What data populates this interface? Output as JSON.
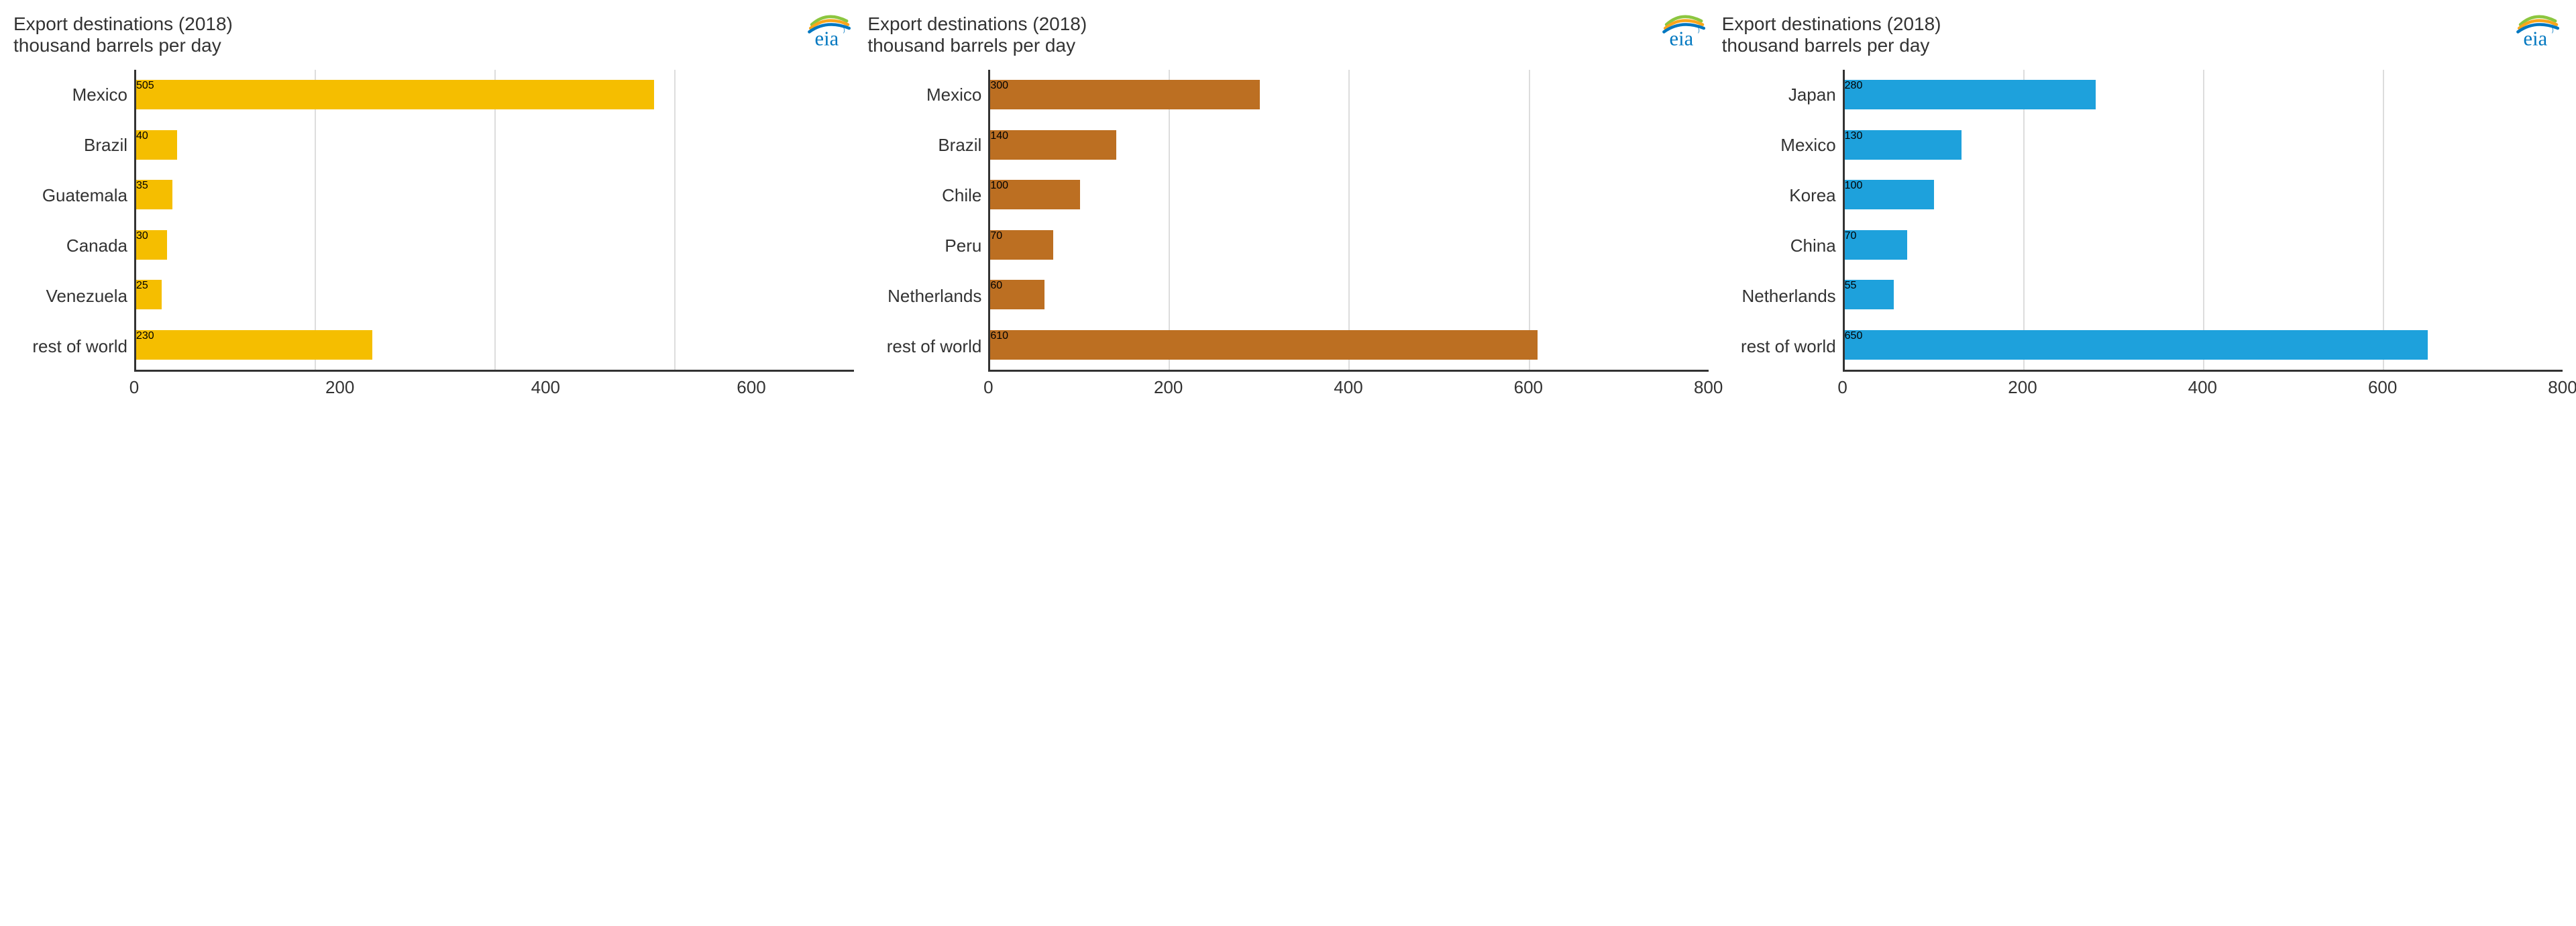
{
  "charts": [
    {
      "title_line1": "Export destinations (2018)",
      "title_line2": "thousand barrels per day",
      "color": "#f5be00",
      "xlim": 700,
      "xtick_step": 200,
      "xtick_max": 600,
      "grid_color": "#dddddd",
      "axis_color": "#333333",
      "title_fontsize": 28,
      "label_fontsize": 26,
      "tick_fontsize": 26,
      "categories": [
        "Mexico",
        "Brazil",
        "Guatemala",
        "Canada",
        "Venezuela",
        "rest of world"
      ],
      "values": [
        505,
        40,
        35,
        30,
        25,
        230
      ]
    },
    {
      "title_line1": "Export destinations (2018)",
      "title_line2": "thousand barrels per day",
      "color": "#bc6f22",
      "xlim": 800,
      "xtick_step": 200,
      "xtick_max": 800,
      "grid_color": "#dddddd",
      "axis_color": "#333333",
      "title_fontsize": 28,
      "label_fontsize": 26,
      "tick_fontsize": 26,
      "categories": [
        "Mexico",
        "Brazil",
        "Chile",
        "Peru",
        "Netherlands",
        "rest of world"
      ],
      "values": [
        300,
        140,
        100,
        70,
        60,
        610
      ]
    },
    {
      "title_line1": "Export destinations (2018)",
      "title_line2": "thousand barrels per day",
      "color": "#1ea1dc",
      "xlim": 800,
      "xtick_step": 200,
      "xtick_max": 800,
      "grid_color": "#dddddd",
      "axis_color": "#333333",
      "title_fontsize": 28,
      "label_fontsize": 26,
      "tick_fontsize": 26,
      "categories": [
        "Japan",
        "Mexico",
        "Korea",
        "China",
        "Netherlands",
        "rest of world"
      ],
      "values": [
        280,
        130,
        100,
        70,
        55,
        650
      ]
    }
  ],
  "logo": {
    "text": "eia",
    "swoosh_colors": [
      "#8cc63f",
      "#f9a51b",
      "#0077c0"
    ],
    "text_color": "#0077c0"
  }
}
